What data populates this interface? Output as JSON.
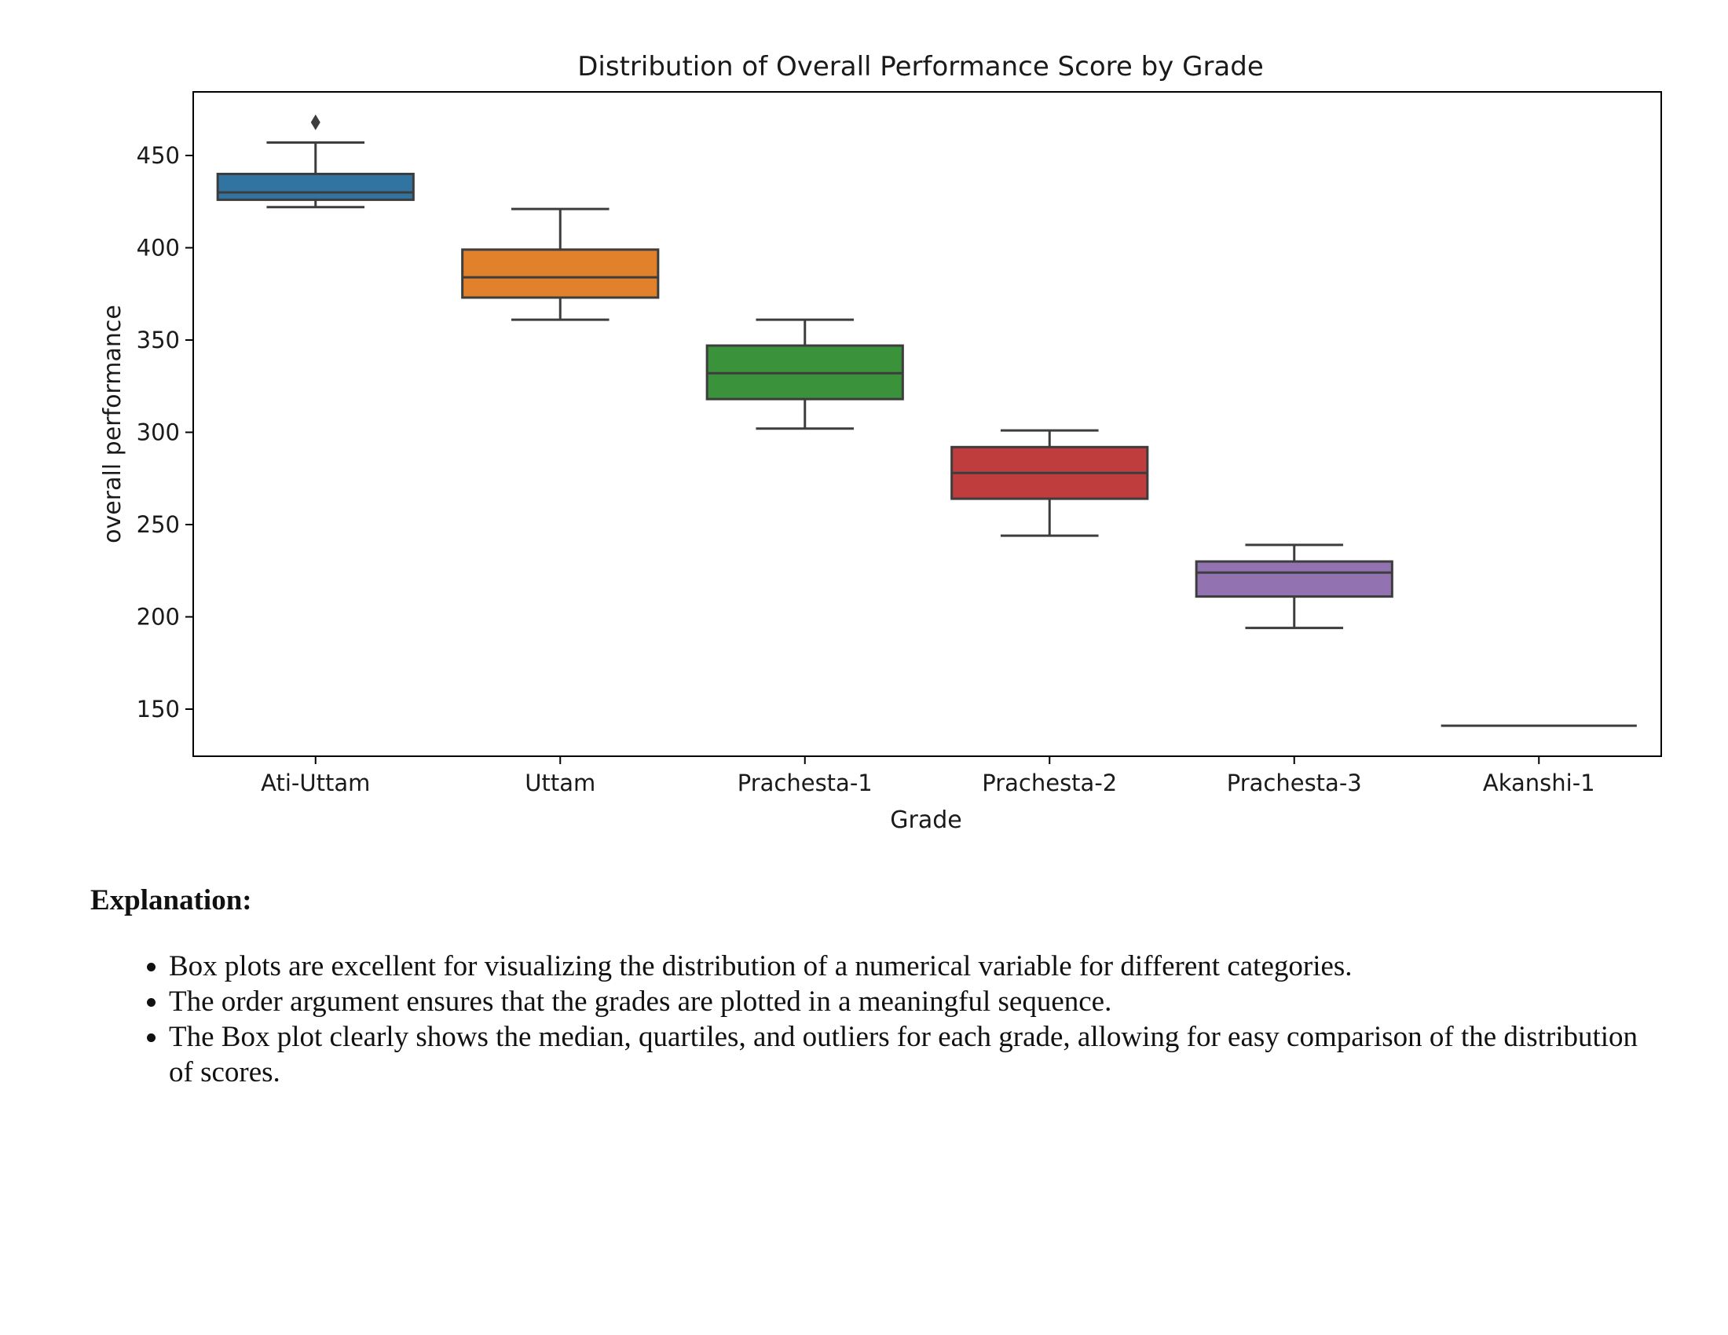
{
  "chart_data": {
    "type": "box",
    "title": "Distribution of Overall Performance Score by Grade",
    "xlabel": "Grade",
    "ylabel": "overall performance",
    "ylim": [
      125,
      485
    ],
    "yticks": [
      150,
      200,
      250,
      300,
      350,
      400,
      450
    ],
    "categories": [
      "Ati-Uttam",
      "Uttam",
      "Prachesta-1",
      "Prachesta-2",
      "Prachesta-3",
      "Akanshi-1"
    ],
    "boxes": [
      {
        "category": "Ati-Uttam",
        "whisker_low": 422,
        "q1": 426,
        "median": 430,
        "q3": 440,
        "whisker_high": 457,
        "outliers": [
          468
        ],
        "color": "#3274a1"
      },
      {
        "category": "Uttam",
        "whisker_low": 361,
        "q1": 373,
        "median": 384,
        "q3": 399,
        "whisker_high": 421,
        "outliers": [],
        "color": "#e1812c"
      },
      {
        "category": "Prachesta-1",
        "whisker_low": 302,
        "q1": 318,
        "median": 332,
        "q3": 347,
        "whisker_high": 361,
        "outliers": [],
        "color": "#3a923a"
      },
      {
        "category": "Prachesta-2",
        "whisker_low": 244,
        "q1": 264,
        "median": 278,
        "q3": 292,
        "whisker_high": 301,
        "outliers": [],
        "color": "#c03d3e"
      },
      {
        "category": "Prachesta-3",
        "whisker_low": 194,
        "q1": 211,
        "median": 224,
        "q3": 230,
        "whisker_high": 239,
        "outliers": [],
        "color": "#9372b2"
      },
      {
        "category": "Akanshi-1",
        "whisker_low": 141,
        "q1": 141,
        "median": 141,
        "q3": 141,
        "whisker_high": 141,
        "outliers": [],
        "color": "#845b53"
      }
    ]
  },
  "explanation": {
    "heading": "Explanation:",
    "bullets": [
      "Box plots are excellent for visualizing the distribution of a numerical variable for different categories.",
      "The order argument ensures that the grades are plotted in a meaningful sequence.",
      "The Box plot clearly shows the median, quartiles, and outliers for each grade, allowing for easy comparison of the distribution of scores."
    ]
  }
}
